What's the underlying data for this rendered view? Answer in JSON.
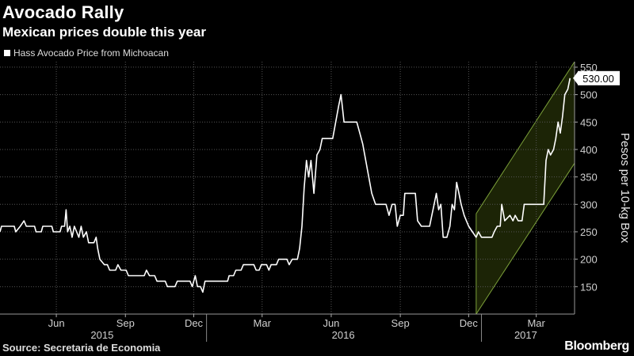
{
  "header": {
    "title": "Avocado Rally",
    "subtitle": "Mexican prices double this year"
  },
  "footer": {
    "source": "Source: Secretaria de Economia",
    "brand": "Bloomberg"
  },
  "colors": {
    "background": "#000000",
    "line": "#ffffff",
    "channel_fill": "#1c2406",
    "channel_edge": "#7da23a",
    "grid": "#555555"
  },
  "chart_data": {
    "type": "line",
    "legend": "Hass Avocado Price from Michoacan",
    "legend_position": "top-left",
    "ylabel": "Pesos per 10-kg Box",
    "yaxis_side": "right",
    "ylim": [
      100,
      560
    ],
    "yticks": [
      150,
      200,
      250,
      300,
      350,
      400,
      450,
      500,
      550
    ],
    "xlim": [
      "2015-04-01",
      "2017-05-05"
    ],
    "x_month_ticks": [
      {
        "date": "2015-06-15",
        "label": "Jun"
      },
      {
        "date": "2015-09-15",
        "label": "Sep"
      },
      {
        "date": "2015-12-15",
        "label": "Dec"
      },
      {
        "date": "2016-03-15",
        "label": "Mar"
      },
      {
        "date": "2016-06-15",
        "label": "Jun"
      },
      {
        "date": "2016-09-15",
        "label": "Sep"
      },
      {
        "date": "2016-12-15",
        "label": "Dec"
      },
      {
        "date": "2017-03-15",
        "label": "Mar"
      }
    ],
    "x_year_labels": [
      {
        "label": "2015",
        "center": "2015-08-15"
      },
      {
        "label": "2016",
        "center": "2016-07-01"
      },
      {
        "label": "2017",
        "center": "2017-03-01"
      }
    ],
    "x_year_separators": [
      "2016-01-01",
      "2017-01-01"
    ],
    "grid": true,
    "last_value_label": "530.00",
    "trend_channel": {
      "lower": [
        [
          "2016-12-25",
          100
        ],
        [
          "2017-05-05",
          375
        ]
      ],
      "upper": [
        [
          "2016-12-25",
          283
        ],
        [
          "2017-05-05",
          560
        ]
      ]
    },
    "series": [
      {
        "points": [
          [
            "2015-04-01",
            250
          ],
          [
            "2015-04-03",
            260
          ],
          [
            "2015-04-20",
            260
          ],
          [
            "2015-04-22",
            250
          ],
          [
            "2015-04-28",
            260
          ],
          [
            "2015-05-03",
            270
          ],
          [
            "2015-05-06",
            260
          ],
          [
            "2015-05-17",
            260
          ],
          [
            "2015-05-19",
            250
          ],
          [
            "2015-05-26",
            250
          ],
          [
            "2015-05-28",
            260
          ],
          [
            "2015-06-09",
            260
          ],
          [
            "2015-06-11",
            250
          ],
          [
            "2015-06-20",
            250
          ],
          [
            "2015-06-22",
            260
          ],
          [
            "2015-06-26",
            260
          ],
          [
            "2015-06-28",
            290
          ],
          [
            "2015-06-30",
            250
          ],
          [
            "2015-07-03",
            260
          ],
          [
            "2015-07-06",
            240
          ],
          [
            "2015-07-09",
            260
          ],
          [
            "2015-07-12",
            250
          ],
          [
            "2015-07-15",
            240
          ],
          [
            "2015-07-18",
            260
          ],
          [
            "2015-07-21",
            240
          ],
          [
            "2015-07-25",
            250
          ],
          [
            "2015-07-28",
            230
          ],
          [
            "2015-08-04",
            230
          ],
          [
            "2015-08-07",
            240
          ],
          [
            "2015-08-09",
            220
          ],
          [
            "2015-08-12",
            200
          ],
          [
            "2015-08-18",
            190
          ],
          [
            "2015-08-22",
            190
          ],
          [
            "2015-08-25",
            180
          ],
          [
            "2015-09-02",
            180
          ],
          [
            "2015-09-05",
            190
          ],
          [
            "2015-09-09",
            180
          ],
          [
            "2015-09-16",
            180
          ],
          [
            "2015-09-19",
            170
          ],
          [
            "2015-10-10",
            170
          ],
          [
            "2015-10-13",
            180
          ],
          [
            "2015-10-17",
            170
          ],
          [
            "2015-10-24",
            170
          ],
          [
            "2015-10-27",
            160
          ],
          [
            "2015-11-07",
            160
          ],
          [
            "2015-11-10",
            150
          ],
          [
            "2015-11-20",
            150
          ],
          [
            "2015-11-23",
            160
          ],
          [
            "2015-12-10",
            160
          ],
          [
            "2015-12-13",
            150
          ],
          [
            "2015-12-17",
            170
          ],
          [
            "2015-12-20",
            150
          ],
          [
            "2015-12-24",
            150
          ],
          [
            "2015-12-27",
            140
          ],
          [
            "2015-12-30",
            160
          ],
          [
            "2016-01-29",
            160
          ],
          [
            "2016-01-31",
            170
          ],
          [
            "2016-02-06",
            170
          ],
          [
            "2016-02-09",
            180
          ],
          [
            "2016-02-16",
            180
          ],
          [
            "2016-02-19",
            190
          ],
          [
            "2016-03-04",
            190
          ],
          [
            "2016-03-07",
            180
          ],
          [
            "2016-03-11",
            180
          ],
          [
            "2016-03-14",
            190
          ],
          [
            "2016-03-21",
            190
          ],
          [
            "2016-03-24",
            180
          ],
          [
            "2016-03-27",
            190
          ],
          [
            "2016-04-03",
            190
          ],
          [
            "2016-04-06",
            200
          ],
          [
            "2016-04-17",
            200
          ],
          [
            "2016-04-20",
            190
          ],
          [
            "2016-04-24",
            200
          ],
          [
            "2016-05-01",
            200
          ],
          [
            "2016-05-04",
            220
          ],
          [
            "2016-05-07",
            260
          ],
          [
            "2016-05-10",
            330
          ],
          [
            "2016-05-13",
            380
          ],
          [
            "2016-05-16",
            350
          ],
          [
            "2016-05-19",
            380
          ],
          [
            "2016-05-23",
            320
          ],
          [
            "2016-05-27",
            390
          ],
          [
            "2016-05-31",
            400
          ],
          [
            "2016-06-03",
            420
          ],
          [
            "2016-06-17",
            420
          ],
          [
            "2016-06-21",
            450
          ],
          [
            "2016-06-25",
            480
          ],
          [
            "2016-06-28",
            500
          ],
          [
            "2016-07-02",
            450
          ],
          [
            "2016-07-19",
            450
          ],
          [
            "2016-07-23",
            430
          ],
          [
            "2016-07-27",
            410
          ],
          [
            "2016-07-31",
            380
          ],
          [
            "2016-08-04",
            350
          ],
          [
            "2016-08-08",
            320
          ],
          [
            "2016-08-13",
            300
          ],
          [
            "2016-08-27",
            300
          ],
          [
            "2016-08-31",
            280
          ],
          [
            "2016-09-04",
            300
          ],
          [
            "2016-09-08",
            300
          ],
          [
            "2016-09-11",
            260
          ],
          [
            "2016-09-15",
            280
          ],
          [
            "2016-09-19",
            280
          ],
          [
            "2016-09-21",
            320
          ],
          [
            "2016-10-05",
            320
          ],
          [
            "2016-10-08",
            270
          ],
          [
            "2016-10-13",
            260
          ],
          [
            "2016-10-24",
            260
          ],
          [
            "2016-10-27",
            280
          ],
          [
            "2016-10-30",
            300
          ],
          [
            "2016-11-02",
            320
          ],
          [
            "2016-11-05",
            290
          ],
          [
            "2016-11-08",
            300
          ],
          [
            "2016-11-11",
            240
          ],
          [
            "2016-11-16",
            240
          ],
          [
            "2016-11-20",
            260
          ],
          [
            "2016-11-23",
            300
          ],
          [
            "2016-11-26",
            290
          ],
          [
            "2016-11-29",
            340
          ],
          [
            "2016-12-02",
            320
          ],
          [
            "2016-12-05",
            300
          ],
          [
            "2016-12-09",
            280
          ],
          [
            "2016-12-12",
            270
          ],
          [
            "2016-12-15",
            260
          ],
          [
            "2016-12-20",
            250
          ],
          [
            "2016-12-25",
            240
          ],
          [
            "2016-12-28",
            250
          ],
          [
            "2017-01-01",
            240
          ],
          [
            "2017-01-15",
            240
          ],
          [
            "2017-01-18",
            250
          ],
          [
            "2017-01-22",
            260
          ],
          [
            "2017-01-26",
            260
          ],
          [
            "2017-01-28",
            300
          ],
          [
            "2017-02-01",
            270
          ],
          [
            "2017-02-08",
            280
          ],
          [
            "2017-02-12",
            270
          ],
          [
            "2017-02-15",
            280
          ],
          [
            "2017-02-19",
            270
          ],
          [
            "2017-02-24",
            270
          ],
          [
            "2017-02-27",
            300
          ],
          [
            "2017-03-25",
            300
          ],
          [
            "2017-03-28",
            380
          ],
          [
            "2017-03-31",
            400
          ],
          [
            "2017-04-03",
            390
          ],
          [
            "2017-04-07",
            400
          ],
          [
            "2017-04-10",
            420
          ],
          [
            "2017-04-13",
            450
          ],
          [
            "2017-04-16",
            430
          ],
          [
            "2017-04-19",
            460
          ],
          [
            "2017-04-22",
            500
          ],
          [
            "2017-04-26",
            510
          ],
          [
            "2017-04-29",
            530
          ]
        ]
      }
    ]
  }
}
